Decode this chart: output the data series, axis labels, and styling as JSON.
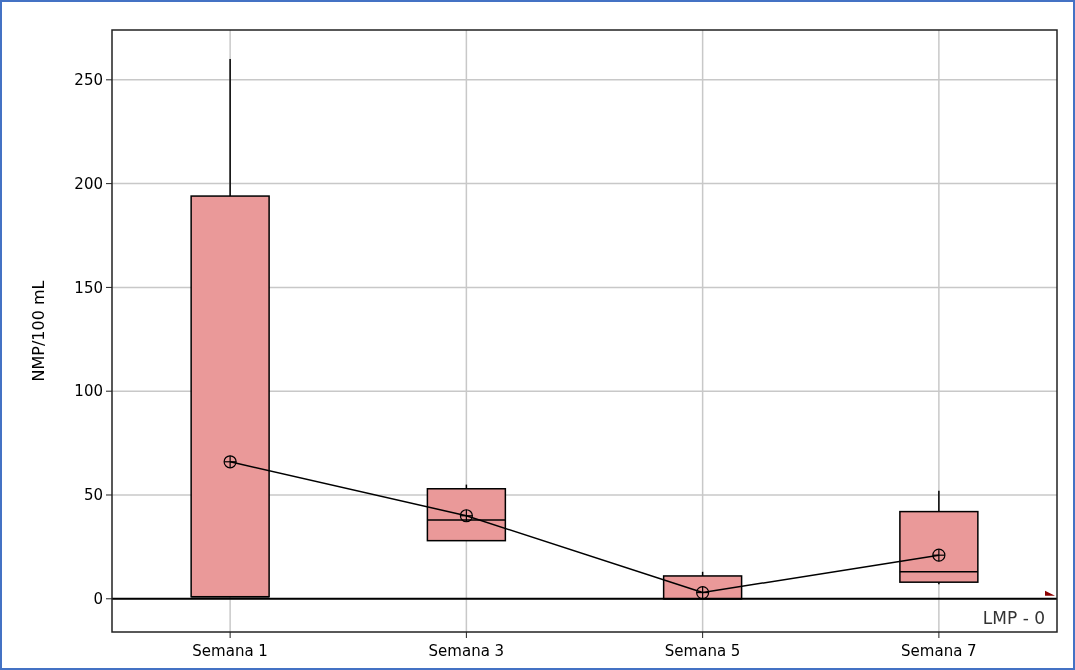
{
  "chart_data": {
    "type": "box",
    "ylabel": "NMP/100 mL",
    "categories": [
      "Semana 1",
      "Semana 3",
      "Semana 5",
      "Semana 7"
    ],
    "series": [
      {
        "color": "#ea9999",
        "boxes": [
          {
            "low": 1,
            "q1": 1,
            "median": 1,
            "q3": 194,
            "high": 260,
            "mean": 66
          },
          {
            "low": 28,
            "q1": 28,
            "median": 38,
            "q3": 53,
            "high": 55,
            "mean": 40
          },
          {
            "low": 0,
            "q1": 0,
            "median": 0,
            "q3": 11,
            "high": 13,
            "mean": 3
          },
          {
            "low": 7,
            "q1": 8,
            "median": 13,
            "q3": 42,
            "high": 52,
            "mean": 21
          }
        ]
      },
      {
        "type": "line",
        "color": "#000000",
        "values": [
          66,
          40,
          3,
          21
        ],
        "marker": "none"
      }
    ],
    "ylim": [
      -16,
      274
    ],
    "yticks": [
      0,
      50,
      100,
      150,
      200,
      250
    ],
    "grid": true,
    "ref_lines": [
      {
        "axis": "y",
        "value": 0,
        "label": "LMP - 0",
        "color": "#000000"
      }
    ]
  }
}
